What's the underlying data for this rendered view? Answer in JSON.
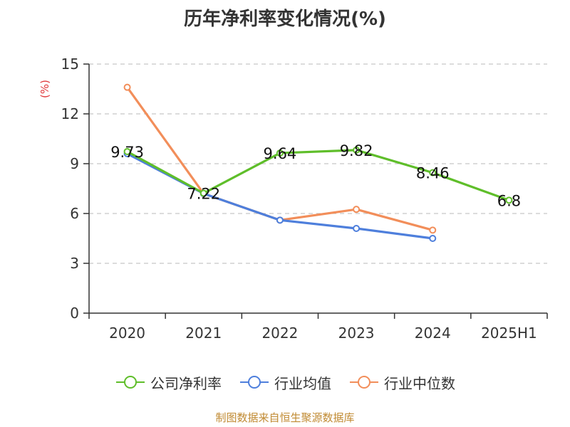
{
  "title": "历年净利率变化情况(%)",
  "source_note": "制图数据来自恒生聚源数据库",
  "colors": {
    "company": "#5fbe2a",
    "industry_avg": "#4e7fdc",
    "industry_median": "#f28e5a",
    "grid": "#c8c8c8",
    "axis": "#333333",
    "unit_label": "#e0383b",
    "source": "#c08a32"
  },
  "chart_data": {
    "type": "line",
    "title": "历年净利率变化情况(%)",
    "ylabel": "(%)",
    "xlabel": "",
    "categories": [
      "2020",
      "2021",
      "2022",
      "2023",
      "2024",
      "2025H1"
    ],
    "ylim": [
      0,
      15
    ],
    "yticks": [
      0,
      3,
      6,
      9,
      12,
      15
    ],
    "grid": true,
    "legend_position": "bottom",
    "series": [
      {
        "name": "公司净利率",
        "color_key": "company",
        "values": [
          9.73,
          7.22,
          9.64,
          9.82,
          8.46,
          6.8
        ],
        "labels": [
          "9.73",
          "7.22",
          "9.64",
          "9.82",
          "8.46",
          "6.8"
        ]
      },
      {
        "name": "行业均值",
        "color_key": "industry_avg",
        "values": [
          9.6,
          7.2,
          5.6,
          5.1,
          4.5,
          null
        ]
      },
      {
        "name": "行业中位数",
        "color_key": "industry_median",
        "values": [
          13.6,
          7.2,
          5.6,
          6.25,
          5.0,
          null
        ]
      }
    ]
  }
}
